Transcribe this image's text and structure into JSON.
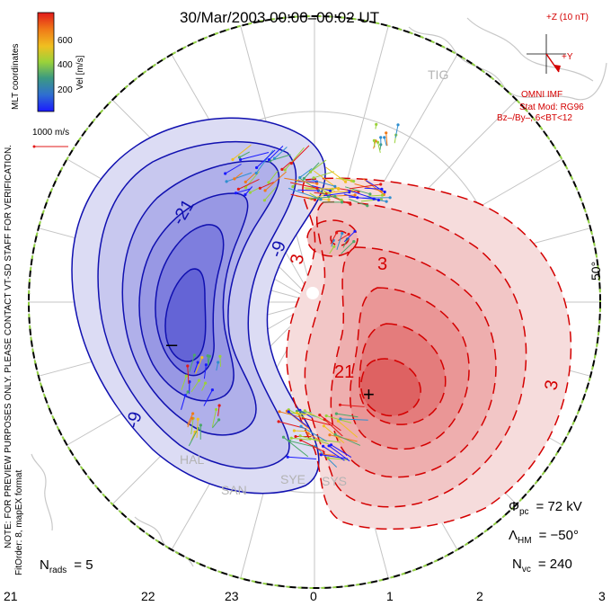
{
  "title": "30/Mar/2003 00:00–00:02 UT",
  "colorbar": {
    "label": "Vel [m/s]",
    "ticks": [
      "600",
      "400",
      "200"
    ],
    "colors": [
      "#1a1aff",
      "#2f8fd0",
      "#4aa86a",
      "#9ad23a",
      "#f0c020",
      "#f07a18",
      "#e21a1a"
    ]
  },
  "side_text": {
    "coords": "MLT coordinates",
    "note": "NOTE: FOR PREVIEW PURPOSES ONLY. PLEASE CONTACT VT-SD STAFF FOR VERIFICATION.",
    "fit": "FitOrder: 8, mapEX format"
  },
  "scale_vector": "1000 m/s",
  "imf": {
    "scale": "+Z (10 nT)",
    "y_label": "+Y",
    "source": "OMNI IMF",
    "model": "Stat Mod: RG96",
    "condition": "Bz–/By–, 6<BT<12"
  },
  "latitude_label": "50°",
  "mlt_labels": [
    "21",
    "22",
    "23",
    "0",
    "1",
    "2",
    "3"
  ],
  "sites": [
    "TIG",
    "HAL",
    "SAN",
    "SYE",
    "SYS"
  ],
  "contour_labels": [
    "-21",
    "-9",
    "-9",
    "3",
    "3",
    "21",
    "3"
  ],
  "potential_extrema": {
    "min_marker": "–",
    "max_marker": "+"
  },
  "stats": {
    "phi_pc_symbol": "Φ",
    "phi_pc_sub": "pc",
    "phi_pc_value": "= 72 kV",
    "lambda_symbol": "Λ",
    "lambda_sub": "HM",
    "lambda_value": "= −50°",
    "nvc_symbol": "N",
    "nvc_sub": "vc",
    "nvc_value": "= 240",
    "nrads_symbol": "N",
    "nrads_sub": "rads",
    "nrads_value": "= 5"
  },
  "colors": {
    "negative_cell": "#2a2ac8",
    "positive_cell": "#d81e1e",
    "boundary_dash": "#90d040"
  }
}
